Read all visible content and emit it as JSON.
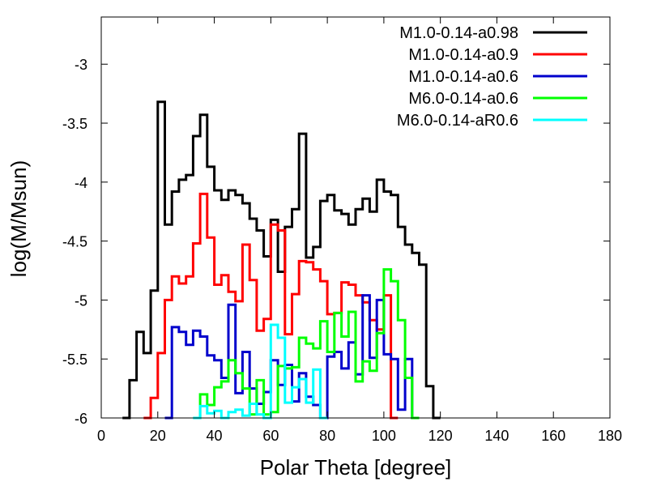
{
  "chart_data": {
    "type": "line",
    "style": "histogram-steps",
    "title": "",
    "xlabel": "Polar Theta [degree]",
    "ylabel": "log(M/Msun)",
    "xlim": [
      0,
      180
    ],
    "ylim": [
      -6,
      -2.6
    ],
    "x_ticks": [
      0,
      20,
      40,
      60,
      80,
      100,
      120,
      140,
      160,
      180
    ],
    "x_tick_labels": [
      "0",
      "20",
      "40",
      "60",
      "80",
      "100",
      "120",
      "140",
      "160",
      "180"
    ],
    "y_ticks": [
      -6,
      -5.5,
      -5,
      -4.5,
      -4,
      -3.5,
      -3
    ],
    "y_tick_labels": [
      "-6",
      "-5.5",
      "-5",
      "-4.5",
      "-4",
      "-3.5",
      "-3"
    ],
    "grid": false,
    "legend_position": "top-right",
    "bin_width": 2.5,
    "series": [
      {
        "name": "M1.0-0.14-a0.98",
        "color": "#000000",
        "x_start": 7.5,
        "values": [
          -6.0,
          -5.68,
          -5.27,
          -5.45,
          -4.92,
          -3.32,
          -4.36,
          -4.08,
          -3.98,
          -3.94,
          -3.61,
          -3.43,
          -3.87,
          -4.07,
          -4.15,
          -4.07,
          -4.11,
          -4.18,
          -4.31,
          -4.41,
          -4.63,
          -4.32,
          -4.76,
          -4.38,
          -4.23,
          -3.59,
          -4.64,
          -4.55,
          -4.16,
          -4.11,
          -4.24,
          -4.27,
          -4.36,
          -4.23,
          -4.14,
          -4.25,
          -3.98,
          -4.08,
          -4.11,
          -4.38,
          -4.53,
          -4.6,
          -4.7,
          -5.73,
          -6.0
        ]
      },
      {
        "name": "M1.0-0.14-a0.9",
        "color": "#ff0000",
        "x_start": 15.0,
        "values": [
          -6.0,
          -5.83,
          -5.45,
          -5.0,
          -4.8,
          -4.86,
          -4.8,
          -4.52,
          -4.1,
          -4.47,
          -4.87,
          -4.79,
          -4.93,
          -5.01,
          -4.53,
          -4.83,
          -5.26,
          -5.16,
          -4.36,
          -4.41,
          -5.29,
          -4.95,
          -4.67,
          -4.68,
          -4.74,
          -4.84,
          -5.12,
          -5.11,
          -4.85,
          -4.87,
          -4.96,
          -5.02,
          -5.17,
          -5.25,
          -4.96,
          -6.0
        ]
      },
      {
        "name": "M1.0-0.14-a0.6",
        "color": "#0000cc",
        "x_start": 22.5,
        "values": [
          -6.0,
          -5.23,
          -5.27,
          -5.38,
          -5.26,
          -5.31,
          -5.47,
          -5.51,
          -5.66,
          -5.04,
          -5.79,
          -5.44,
          -5.75,
          -5.88,
          -5.78,
          -5.51,
          -5.72,
          -5.55,
          -5.86,
          -5.62,
          -5.82,
          -5.89,
          -6.0,
          -5.48,
          -5.44,
          -5.58,
          -5.36,
          -5.63,
          -4.96,
          -5.49,
          -5.0,
          -5.46,
          -5.5,
          -5.93,
          -5.5,
          -6.0
        ]
      },
      {
        "name": "M6.0-0.14-a0.6",
        "color": "#00ff00",
        "x_start": 32.5,
        "values": [
          -6.0,
          -5.8,
          -5.89,
          -5.74,
          -5.69,
          -5.51,
          -5.62,
          -5.75,
          -5.97,
          -5.68,
          -5.97,
          -5.95,
          -5.56,
          -5.58,
          -5.57,
          -5.32,
          -5.37,
          -5.41,
          -5.18,
          -5.44,
          -5.11,
          -5.31,
          -5.1,
          -5.69,
          -5.52,
          -5.6,
          -5.28,
          -4.74,
          -4.84,
          -5.17,
          -5.66,
          -6.0
        ]
      },
      {
        "name": "M6.0-0.14-aR0.6",
        "color": "#00ffff",
        "x_start": 32.5,
        "values": [
          -6.0,
          -5.9,
          -5.96,
          -5.94,
          -6.0,
          -5.95,
          -5.93,
          -5.98,
          -5.88,
          -5.97,
          -6.0,
          -5.21,
          -5.32,
          -5.87,
          -5.74,
          -5.67,
          -5.87,
          -5.59,
          -6.0
        ]
      }
    ]
  }
}
